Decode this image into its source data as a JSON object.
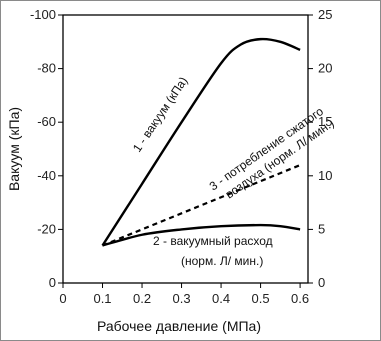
{
  "chart_data": {
    "type": "line",
    "xlabel": "Рабочее давление (МПа)",
    "ylabel": "Вакуум (кПа)",
    "x_ticks": [
      "0",
      "0.1",
      "0.2",
      "0.3",
      "0.4",
      "0.5",
      "0.6"
    ],
    "y_left_ticks": [
      "-100",
      "-80",
      "-60",
      "-40",
      "-20",
      "0"
    ],
    "y_right_ticks": [
      "25",
      "20",
      "15",
      "10",
      "5",
      "0"
    ],
    "xlim": [
      0,
      0.62
    ],
    "ylim_left": [
      0,
      -100
    ],
    "ylim_right": [
      0,
      25
    ],
    "grid": false,
    "series": [
      {
        "name": "1 - вакуум (кПа)",
        "axis": "left",
        "style": "solid",
        "x": [
          0.1,
          0.2,
          0.3,
          0.4,
          0.45,
          0.5,
          0.55,
          0.6
        ],
        "y": [
          -14,
          -37,
          -60,
          -82,
          -89,
          -91,
          -90,
          -87
        ]
      },
      {
        "name": "2 - вакуумный расход (норм. Л/мин.)",
        "axis": "right",
        "style": "solid",
        "x": [
          0.1,
          0.2,
          0.3,
          0.4,
          0.5,
          0.55,
          0.6
        ],
        "y": [
          3.5,
          4.5,
          5.0,
          5.3,
          5.4,
          5.3,
          5.0
        ]
      },
      {
        "name": "3 - потребление сжатого воздуха (норм. Л/мин.)",
        "axis": "right",
        "style": "dashed",
        "x": [
          0.1,
          0.6
        ],
        "y": [
          3.5,
          11.0
        ]
      }
    ],
    "annotations": [
      {
        "id": "s1",
        "text": "1 - вакуум  (кПа)"
      },
      {
        "id": "s3a",
        "text": "3 - потребление сжатого"
      },
      {
        "id": "s3b",
        "text": "воздуха (норм. Л/ мин.)"
      },
      {
        "id": "s2a",
        "text": "2 - вакуумный расход"
      },
      {
        "id": "s2b",
        "text": "(норм. Л/ мин.)"
      }
    ]
  }
}
